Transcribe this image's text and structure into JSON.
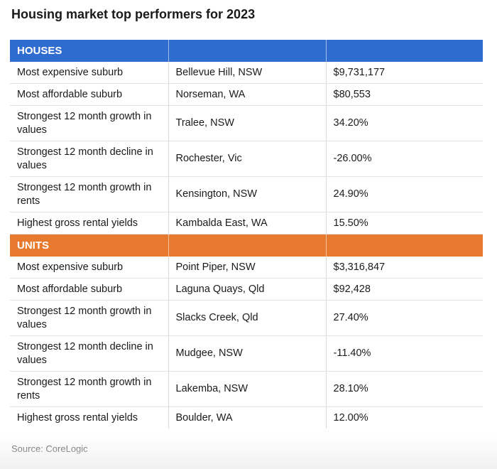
{
  "title": "Housing market top performers for 2023",
  "chart_data": {
    "type": "table",
    "sections": [
      {
        "name": "HOUSES",
        "color": "#2f6ccf",
        "rows": [
          {
            "metric": "Most expensive suburb",
            "suburb": "Bellevue Hill, NSW",
            "value": "$9,731,177"
          },
          {
            "metric": "Most affordable suburb",
            "suburb": "Norseman, WA",
            "value": "$80,553"
          },
          {
            "metric": "Strongest 12 month growth in values",
            "suburb": "Tralee, NSW",
            "value": "34.20%"
          },
          {
            "metric": "Strongest 12 month decline in values",
            "suburb": "Rochester, Vic",
            "value": "-26.00%"
          },
          {
            "metric": "Strongest 12 month growth in rents",
            "suburb": "Kensington, NSW",
            "value": "24.90%"
          },
          {
            "metric": "Highest gross rental yields",
            "suburb": "Kambalda East, WA",
            "value": "15.50%"
          }
        ]
      },
      {
        "name": "UNITS",
        "color": "#e87a2f",
        "rows": [
          {
            "metric": "Most expensive suburb",
            "suburb": "Point Piper, NSW",
            "value": "$3,316,847"
          },
          {
            "metric": "Most affordable suburb",
            "suburb": "Laguna Quays, Qld",
            "value": "$92,428"
          },
          {
            "metric": "Strongest 12 month growth in values",
            "suburb": "Slacks Creek, Qld",
            "value": "27.40%"
          },
          {
            "metric": "Strongest 12 month decline in values",
            "suburb": "Mudgee, NSW",
            "value": "-11.40%"
          },
          {
            "metric": "Strongest 12 month growth in rents",
            "suburb": "Lakemba, NSW",
            "value": "28.10%"
          },
          {
            "metric": "Highest gross rental yields",
            "suburb": "Boulder, WA",
            "value": "12.00%"
          }
        ]
      }
    ]
  },
  "source": "Source: CoreLogic"
}
